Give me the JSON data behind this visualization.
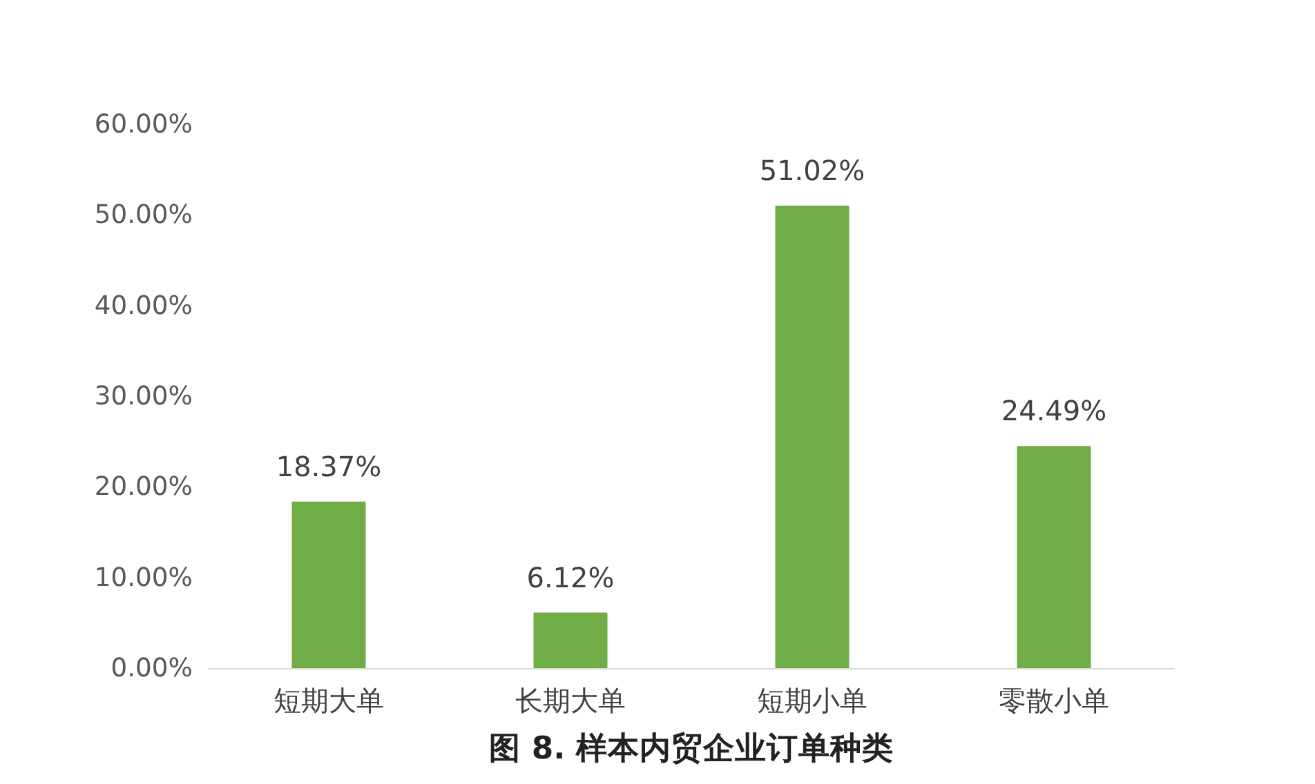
{
  "chart_data": {
    "type": "bar",
    "title": "图 8. 样本内贸企业订单种类",
    "categories": [
      "短期大单",
      "长期大单",
      "短期小单",
      "零散小单"
    ],
    "values": [
      18.37,
      6.12,
      51.02,
      24.49
    ],
    "value_labels": [
      "18.37%",
      "6.12%",
      "51.02%",
      "24.49%"
    ],
    "color": "#70ad47",
    "ylim": [
      0,
      60
    ],
    "yticks": [
      {
        "value": 0,
        "label": "0.00%"
      },
      {
        "value": 10,
        "label": "10.00%"
      },
      {
        "value": 20,
        "label": "20.00%"
      },
      {
        "value": 30,
        "label": "30.00%"
      },
      {
        "value": 40,
        "label": "40.00%"
      },
      {
        "value": 50,
        "label": "50.00%"
      },
      {
        "value": 60,
        "label": "60.00%"
      }
    ],
    "grid": false
  }
}
